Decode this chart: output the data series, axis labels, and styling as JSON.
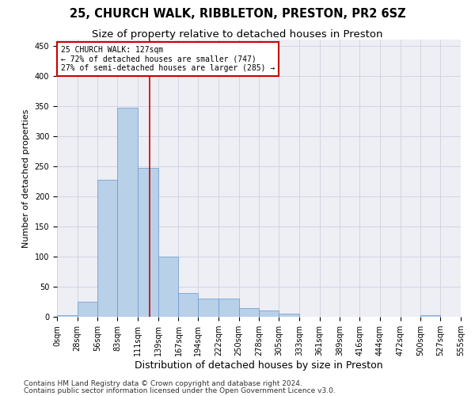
{
  "title1": "25, CHURCH WALK, RIBBLETON, PRESTON, PR2 6SZ",
  "title2": "Size of property relative to detached houses in Preston",
  "xlabel": "Distribution of detached houses by size in Preston",
  "ylabel": "Number of detached properties",
  "footnote1": "Contains HM Land Registry data © Crown copyright and database right 2024.",
  "footnote2": "Contains public sector information licensed under the Open Government Licence v3.0.",
  "bin_edges": [
    0,
    28,
    56,
    83,
    111,
    139,
    167,
    194,
    222,
    250,
    278,
    305,
    333,
    361,
    389,
    416,
    444,
    472,
    500,
    527,
    555
  ],
  "bin_counts": [
    3,
    25,
    228,
    347,
    247,
    100,
    40,
    30,
    30,
    14,
    10,
    5,
    0,
    0,
    0,
    0,
    0,
    0,
    2,
    0
  ],
  "bar_facecolor": "#b8d0e8",
  "bar_edgecolor": "#6699cc",
  "grid_color": "#d0d0e0",
  "property_size": 127,
  "marker_line_color": "#cc0000",
  "annotation_line1": "25 CHURCH WALK: 127sqm",
  "annotation_line2": "← 72% of detached houses are smaller (747)",
  "annotation_line3": "27% of semi-detached houses are larger (285) →",
  "annotation_box_color": "#cc0000",
  "ylim": [
    0,
    460
  ],
  "title1_fontsize": 10.5,
  "title2_fontsize": 9.5,
  "xlabel_fontsize": 9,
  "ylabel_fontsize": 8,
  "tick_fontsize": 7,
  "footnote_fontsize": 6.5,
  "bg_color": "#ffffff",
  "plot_bg_color": "#eeeef5"
}
